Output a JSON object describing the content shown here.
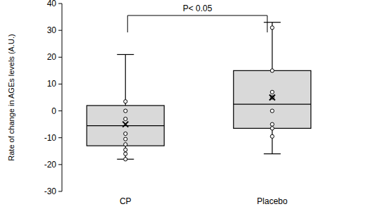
{
  "chart_data": {
    "type": "box",
    "y_label": "Rate of change in AGEs levels (A.U.)",
    "categories": [
      "CP",
      "Placebo"
    ],
    "min": [
      -18,
      -16
    ],
    "q1": [
      -13,
      -6.5
    ],
    "median": [
      -5.5,
      2.5
    ],
    "q3": [
      2,
      15
    ],
    "max": [
      21,
      33
    ],
    "mean": [
      -5,
      5
    ],
    "points": [
      [
        3.5,
        0,
        -3,
        -8.5,
        -10.5,
        -12.5,
        -14.5,
        -16,
        -18
      ],
      [
        31,
        15,
        7,
        5,
        0,
        -5,
        -6.5,
        -9.5
      ]
    ],
    "annotation": "P< 0.05",
    "ylim": [
      -30,
      40
    ],
    "yticks": [
      -30,
      -20,
      -10,
      0,
      10,
      20,
      30,
      40
    ],
    "color": "#d9d9d9",
    "grid": false
  }
}
